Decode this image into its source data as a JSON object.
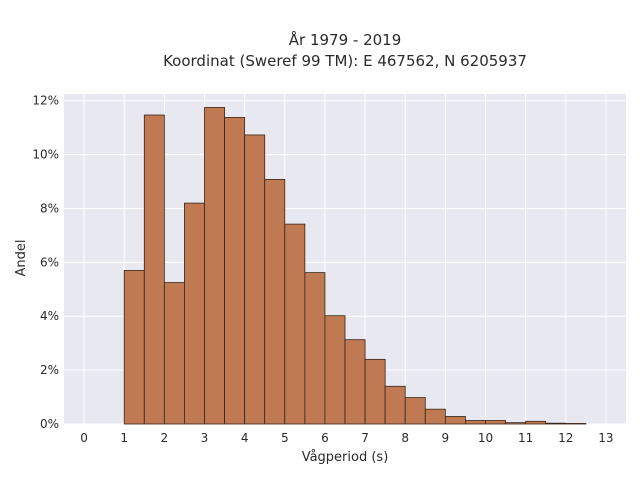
{
  "chart_data": {
    "type": "bar",
    "title_lines": [
      "År 1979 - 2019",
      "Koordinat (Sweref 99 TM): E 467562, N 6205937"
    ],
    "xlabel": "Vågperiod (s)",
    "ylabel": "Andel",
    "xlim": [
      -0.5,
      13.5
    ],
    "ylim": [
      0,
      0.1225
    ],
    "x_ticks": [
      0,
      1,
      2,
      3,
      4,
      5,
      6,
      7,
      8,
      9,
      10,
      11,
      12,
      13
    ],
    "y_ticks": [
      0,
      0.02,
      0.04,
      0.06,
      0.08,
      0.1,
      0.12
    ],
    "y_tick_labels": [
      "0%",
      "2%",
      "4%",
      "6%",
      "8%",
      "10%",
      "12%"
    ],
    "bin_width": 0.5,
    "bin_starts": [
      1.0,
      1.5,
      2.0,
      2.5,
      3.0,
      3.5,
      4.0,
      4.5,
      5.0,
      5.5,
      6.0,
      6.5,
      7.0,
      7.5,
      8.0,
      8.5,
      9.0,
      9.5,
      10.0,
      10.5,
      11.0,
      11.5,
      12.0
    ],
    "values": [
      0.057,
      0.1147,
      0.0525,
      0.082,
      0.1175,
      0.1138,
      0.1073,
      0.0908,
      0.0742,
      0.0562,
      0.0402,
      0.0313,
      0.024,
      0.014,
      0.0098,
      0.0055,
      0.0028,
      0.0013,
      0.0013,
      0.0005,
      0.001,
      0.0003,
      0.0002
    ],
    "grid": true,
    "colors": {
      "bar_fill": "#c07a53",
      "bar_edge": "#3a2418",
      "plot_background": "#e8e8f0",
      "grid": "#ffffff"
    }
  }
}
